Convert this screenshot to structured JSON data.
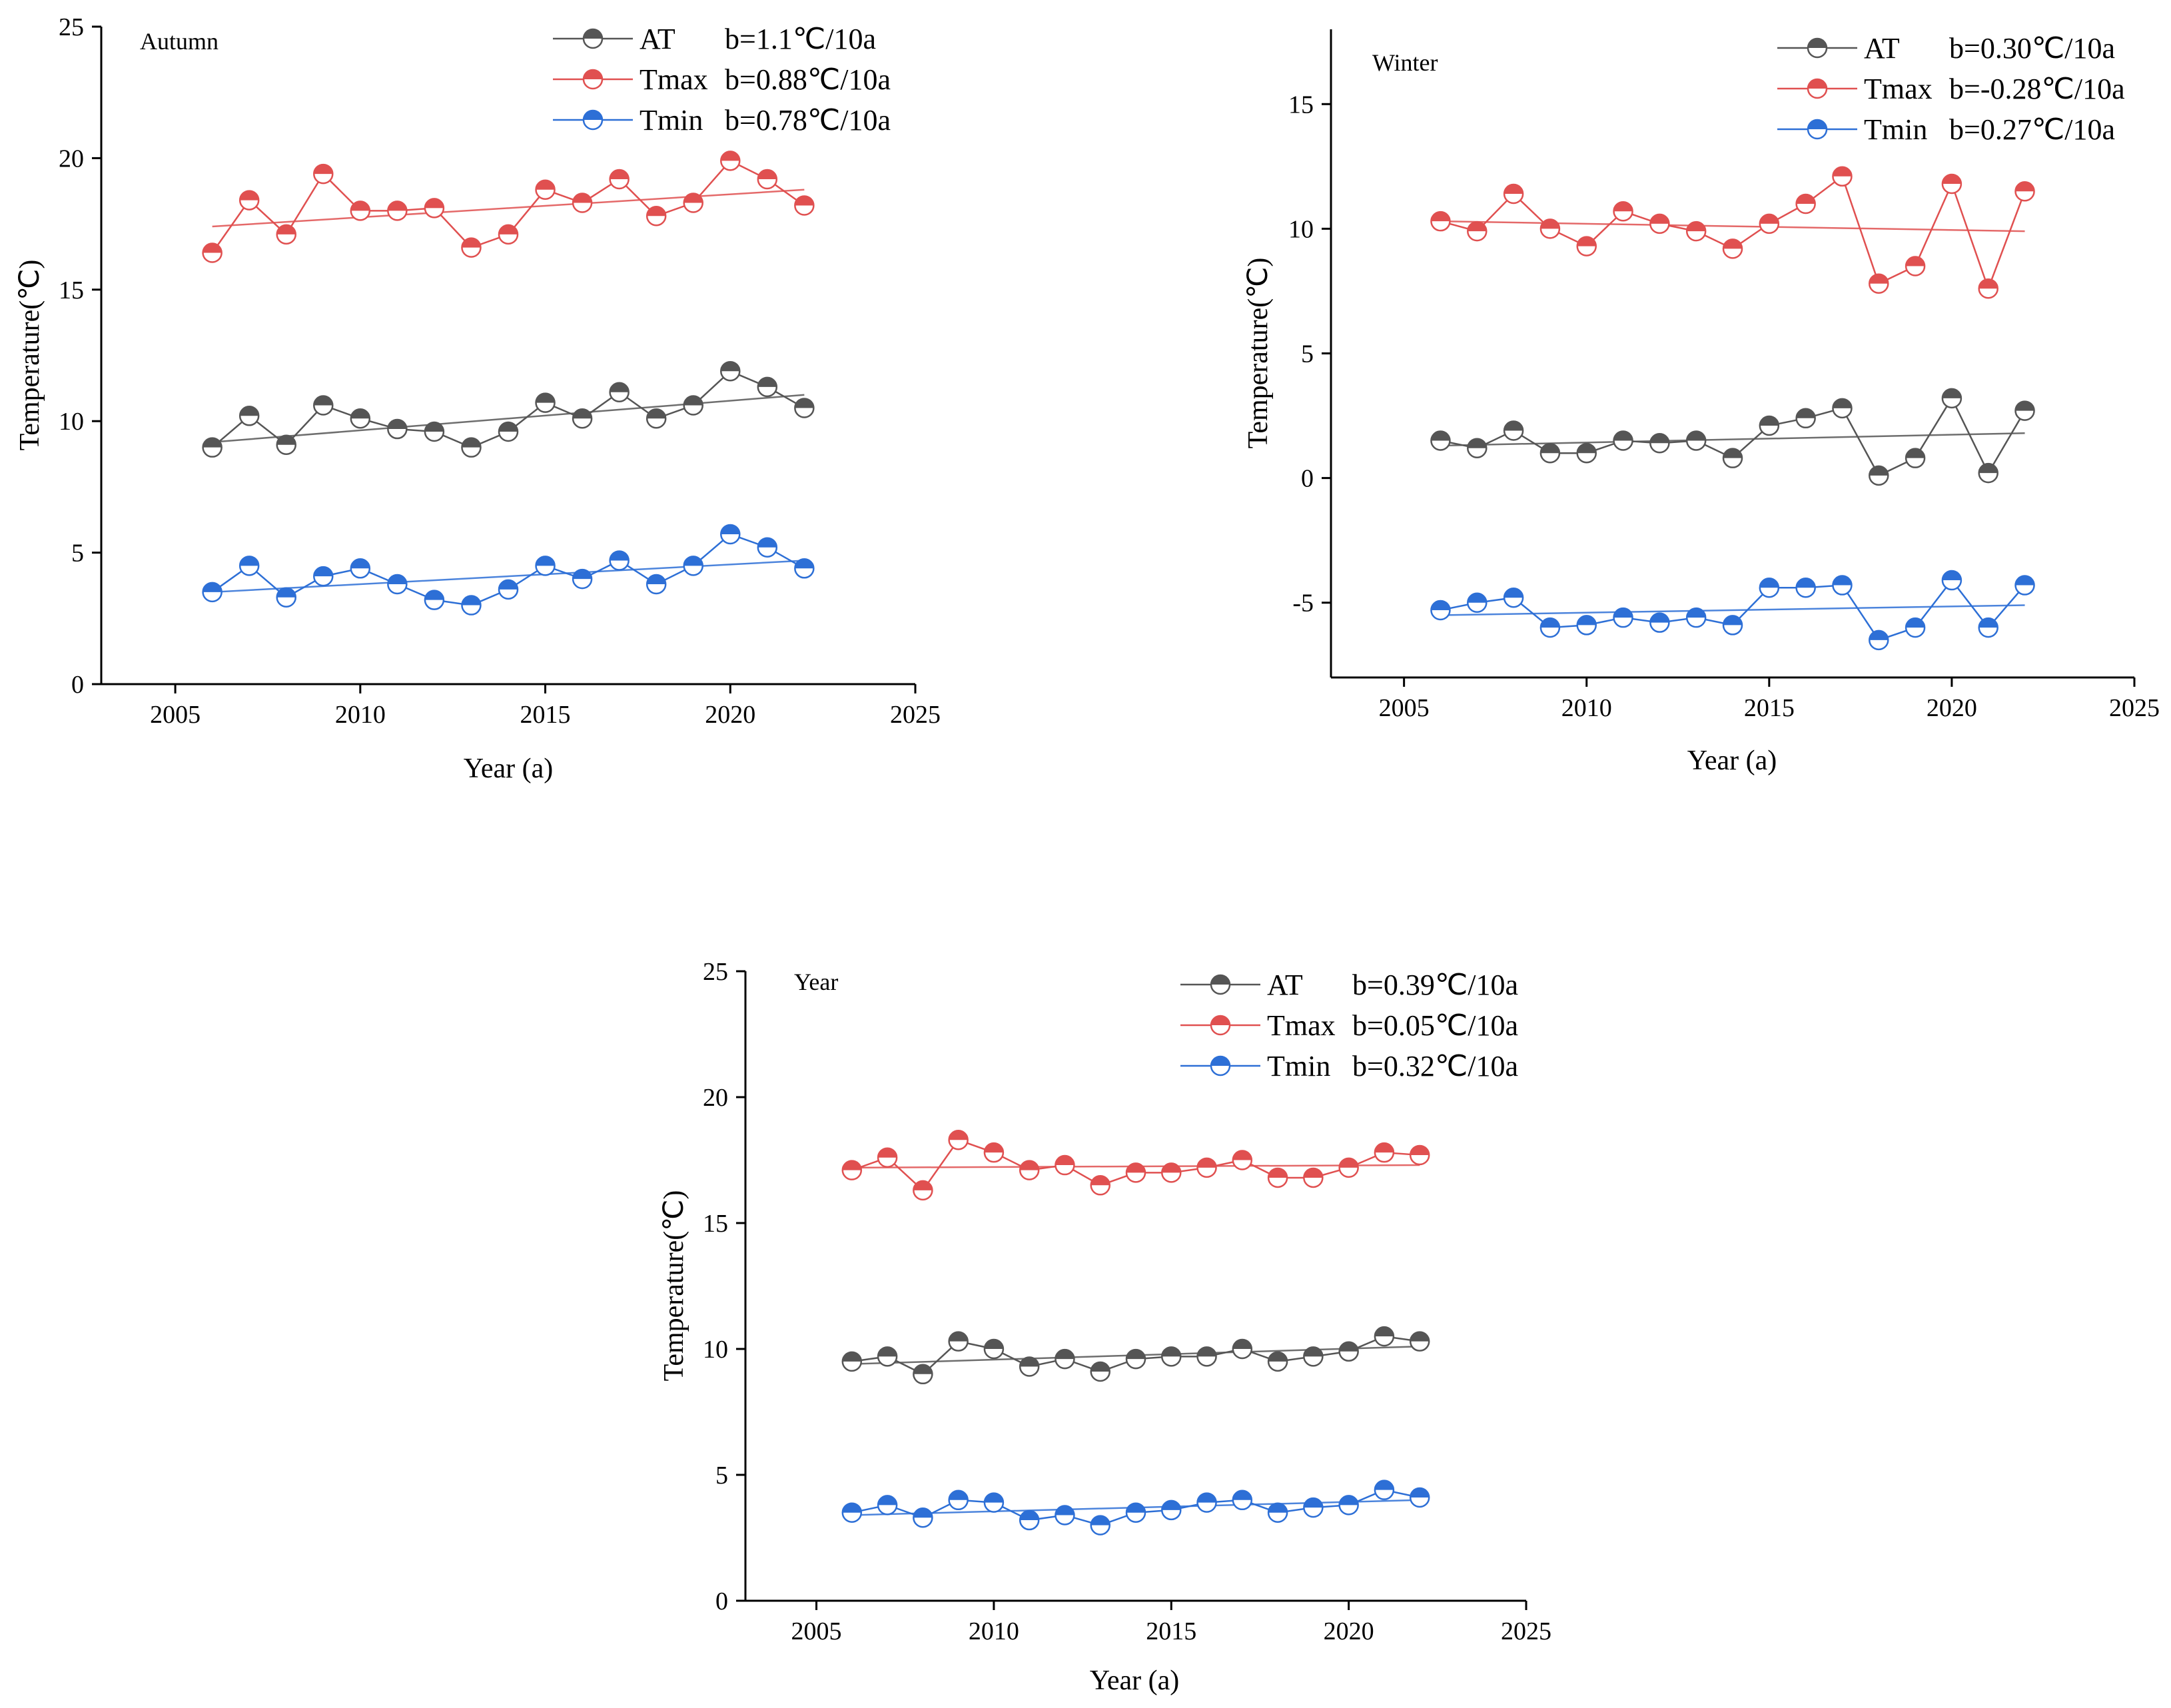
{
  "chart_data": [
    {
      "type": "line",
      "panel_id": "autumn",
      "title": "Autumn",
      "xlabel": "Year (a)",
      "ylabel": "Temperature(℃)",
      "xlim": [
        2003,
        2025
      ],
      "ylim": [
        0,
        25
      ],
      "xticks": [
        "2005",
        "2010",
        "2015",
        "2020",
        "2025"
      ],
      "yticks": [
        "0",
        "5",
        "10",
        "15",
        "20",
        "25"
      ],
      "x": [
        2006,
        2007,
        2008,
        2009,
        2010,
        2011,
        2012,
        2013,
        2014,
        2015,
        2016,
        2017,
        2018,
        2019,
        2020,
        2021,
        2022
      ],
      "series": [
        {
          "name": "AT",
          "legend_label": "AT",
          "slope_label": "b=1.1℃/10a",
          "color": "#555555",
          "values": [
            9.0,
            10.2,
            9.1,
            10.6,
            10.1,
            9.7,
            9.6,
            9.0,
            9.6,
            10.7,
            10.1,
            11.1,
            10.1,
            10.6,
            11.9,
            11.3,
            10.5
          ],
          "trend": [
            9.2,
            11.0
          ]
        },
        {
          "name": "Tmax",
          "legend_label": "Tmax",
          "slope_label": "b=0.88℃/10a",
          "color": "#e05050",
          "values": [
            16.4,
            18.4,
            17.1,
            19.4,
            18.0,
            18.0,
            18.1,
            16.6,
            17.1,
            18.8,
            18.3,
            19.2,
            17.8,
            18.3,
            19.9,
            19.2,
            18.2
          ],
          "trend": [
            17.4,
            18.8
          ]
        },
        {
          "name": "Tmin",
          "legend_label": "Tmin",
          "slope_label": "b=0.78℃/10a",
          "color": "#2d6fd6",
          "values": [
            3.5,
            4.5,
            3.3,
            4.1,
            4.4,
            3.8,
            3.2,
            3.0,
            3.6,
            4.5,
            4.0,
            4.7,
            3.8,
            4.5,
            5.7,
            5.2,
            4.4
          ],
          "trend": [
            3.5,
            4.7
          ]
        }
      ]
    },
    {
      "type": "line",
      "panel_id": "winter",
      "title": "Winter",
      "xlabel": "Year (a)",
      "ylabel": "Temperature(℃)",
      "xlim": [
        2003,
        2025
      ],
      "ylim": [
        -8,
        18
      ],
      "xticks": [
        "2005",
        "2010",
        "2015",
        "2020",
        "2025"
      ],
      "yticks": [
        "-5",
        "0",
        "5",
        "10",
        "15"
      ],
      "x": [
        2006,
        2007,
        2008,
        2009,
        2010,
        2011,
        2012,
        2013,
        2014,
        2015,
        2016,
        2017,
        2018,
        2019,
        2020,
        2021,
        2022
      ],
      "series": [
        {
          "name": "AT",
          "legend_label": "AT",
          "slope_label": "b=0.30℃/10a",
          "color": "#555555",
          "values": [
            1.5,
            1.2,
            1.9,
            1.0,
            1.0,
            1.5,
            1.4,
            1.5,
            0.8,
            2.1,
            2.4,
            2.8,
            0.1,
            0.8,
            3.2,
            0.2,
            2.7
          ],
          "trend": [
            1.3,
            1.8
          ]
        },
        {
          "name": "Tmax",
          "legend_label": "Tmax",
          "slope_label": "b=-0.28℃/10a",
          "color": "#e05050",
          "values": [
            10.3,
            9.9,
            11.4,
            10.0,
            9.3,
            10.7,
            10.2,
            9.9,
            9.2,
            10.2,
            11.0,
            12.1,
            7.8,
            8.5,
            11.8,
            7.6,
            11.5
          ],
          "trend": [
            10.3,
            9.9
          ]
        },
        {
          "name": "Tmin",
          "legend_label": "Tmin",
          "slope_label": "b=0.27℃/10a",
          "color": "#2d6fd6",
          "values": [
            -5.3,
            -5.0,
            -4.8,
            -6.0,
            -5.9,
            -5.6,
            -5.8,
            -5.6,
            -5.9,
            -4.4,
            -4.4,
            -4.3,
            -6.5,
            -6.0,
            -4.1,
            -6.0,
            -4.3
          ],
          "trend": [
            -5.5,
            -5.1
          ]
        }
      ]
    },
    {
      "type": "line",
      "panel_id": "year",
      "title": "Year",
      "xlabel": "Year (a)",
      "ylabel": "Temperature(℃)",
      "xlim": [
        2003,
        2025
      ],
      "ylim": [
        0,
        25
      ],
      "xticks": [
        "2005",
        "2010",
        "2015",
        "2020",
        "2025"
      ],
      "yticks": [
        "0",
        "5",
        "10",
        "15",
        "20",
        "25"
      ],
      "x": [
        2006,
        2007,
        2008,
        2009,
        2010,
        2011,
        2012,
        2013,
        2014,
        2015,
        2016,
        2017,
        2018,
        2019,
        2020,
        2021,
        2022
      ],
      "series": [
        {
          "name": "AT",
          "legend_label": "AT",
          "slope_label": "b=0.39℃/10a",
          "color": "#555555",
          "values": [
            9.5,
            9.7,
            9.0,
            10.3,
            10.0,
            9.3,
            9.6,
            9.1,
            9.6,
            9.7,
            9.7,
            10.0,
            9.5,
            9.7,
            9.9,
            10.5,
            10.3
          ],
          "trend": [
            9.4,
            10.1
          ]
        },
        {
          "name": "Tmax",
          "legend_label": "Tmax",
          "slope_label": "b=0.05℃/10a",
          "color": "#e05050",
          "values": [
            17.1,
            17.6,
            16.3,
            18.3,
            17.8,
            17.1,
            17.3,
            16.5,
            17.0,
            17.0,
            17.2,
            17.5,
            16.8,
            16.8,
            17.2,
            17.8,
            17.7
          ],
          "trend": [
            17.2,
            17.3
          ]
        },
        {
          "name": "Tmin",
          "legend_label": "Tmin",
          "slope_label": "b=0.32℃/10a",
          "color": "#2d6fd6",
          "values": [
            3.5,
            3.8,
            3.3,
            4.0,
            3.9,
            3.2,
            3.4,
            3.0,
            3.5,
            3.6,
            3.9,
            4.0,
            3.5,
            3.7,
            3.8,
            4.4,
            4.1
          ],
          "trend": [
            3.4,
            4.0
          ]
        }
      ]
    }
  ]
}
